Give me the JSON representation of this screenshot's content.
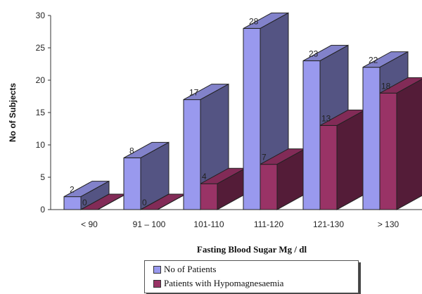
{
  "chart_data": {
    "type": "bar",
    "title": "",
    "xlabel": "Fasting Blood Sugar  Mg / dl",
    "ylabel": "No of Subjects",
    "categories": [
      "< 90",
      "91 – 100",
      "101-110",
      "111-120",
      "121-130",
      "> 130"
    ],
    "series": [
      {
        "name": "No of  Patients",
        "values": [
          2,
          8,
          17,
          28,
          23,
          22
        ],
        "color": "#9999ee"
      },
      {
        "name": "Patients with Hypomagnesaemia",
        "values": [
          0,
          0,
          4,
          7,
          13,
          18
        ],
        "color": "#993366"
      }
    ],
    "ylim": [
      0,
      30
    ],
    "yticks": [
      0,
      5,
      10,
      15,
      20,
      25,
      30
    ],
    "grid": false,
    "legend_position": "bottom",
    "three_d": true
  }
}
